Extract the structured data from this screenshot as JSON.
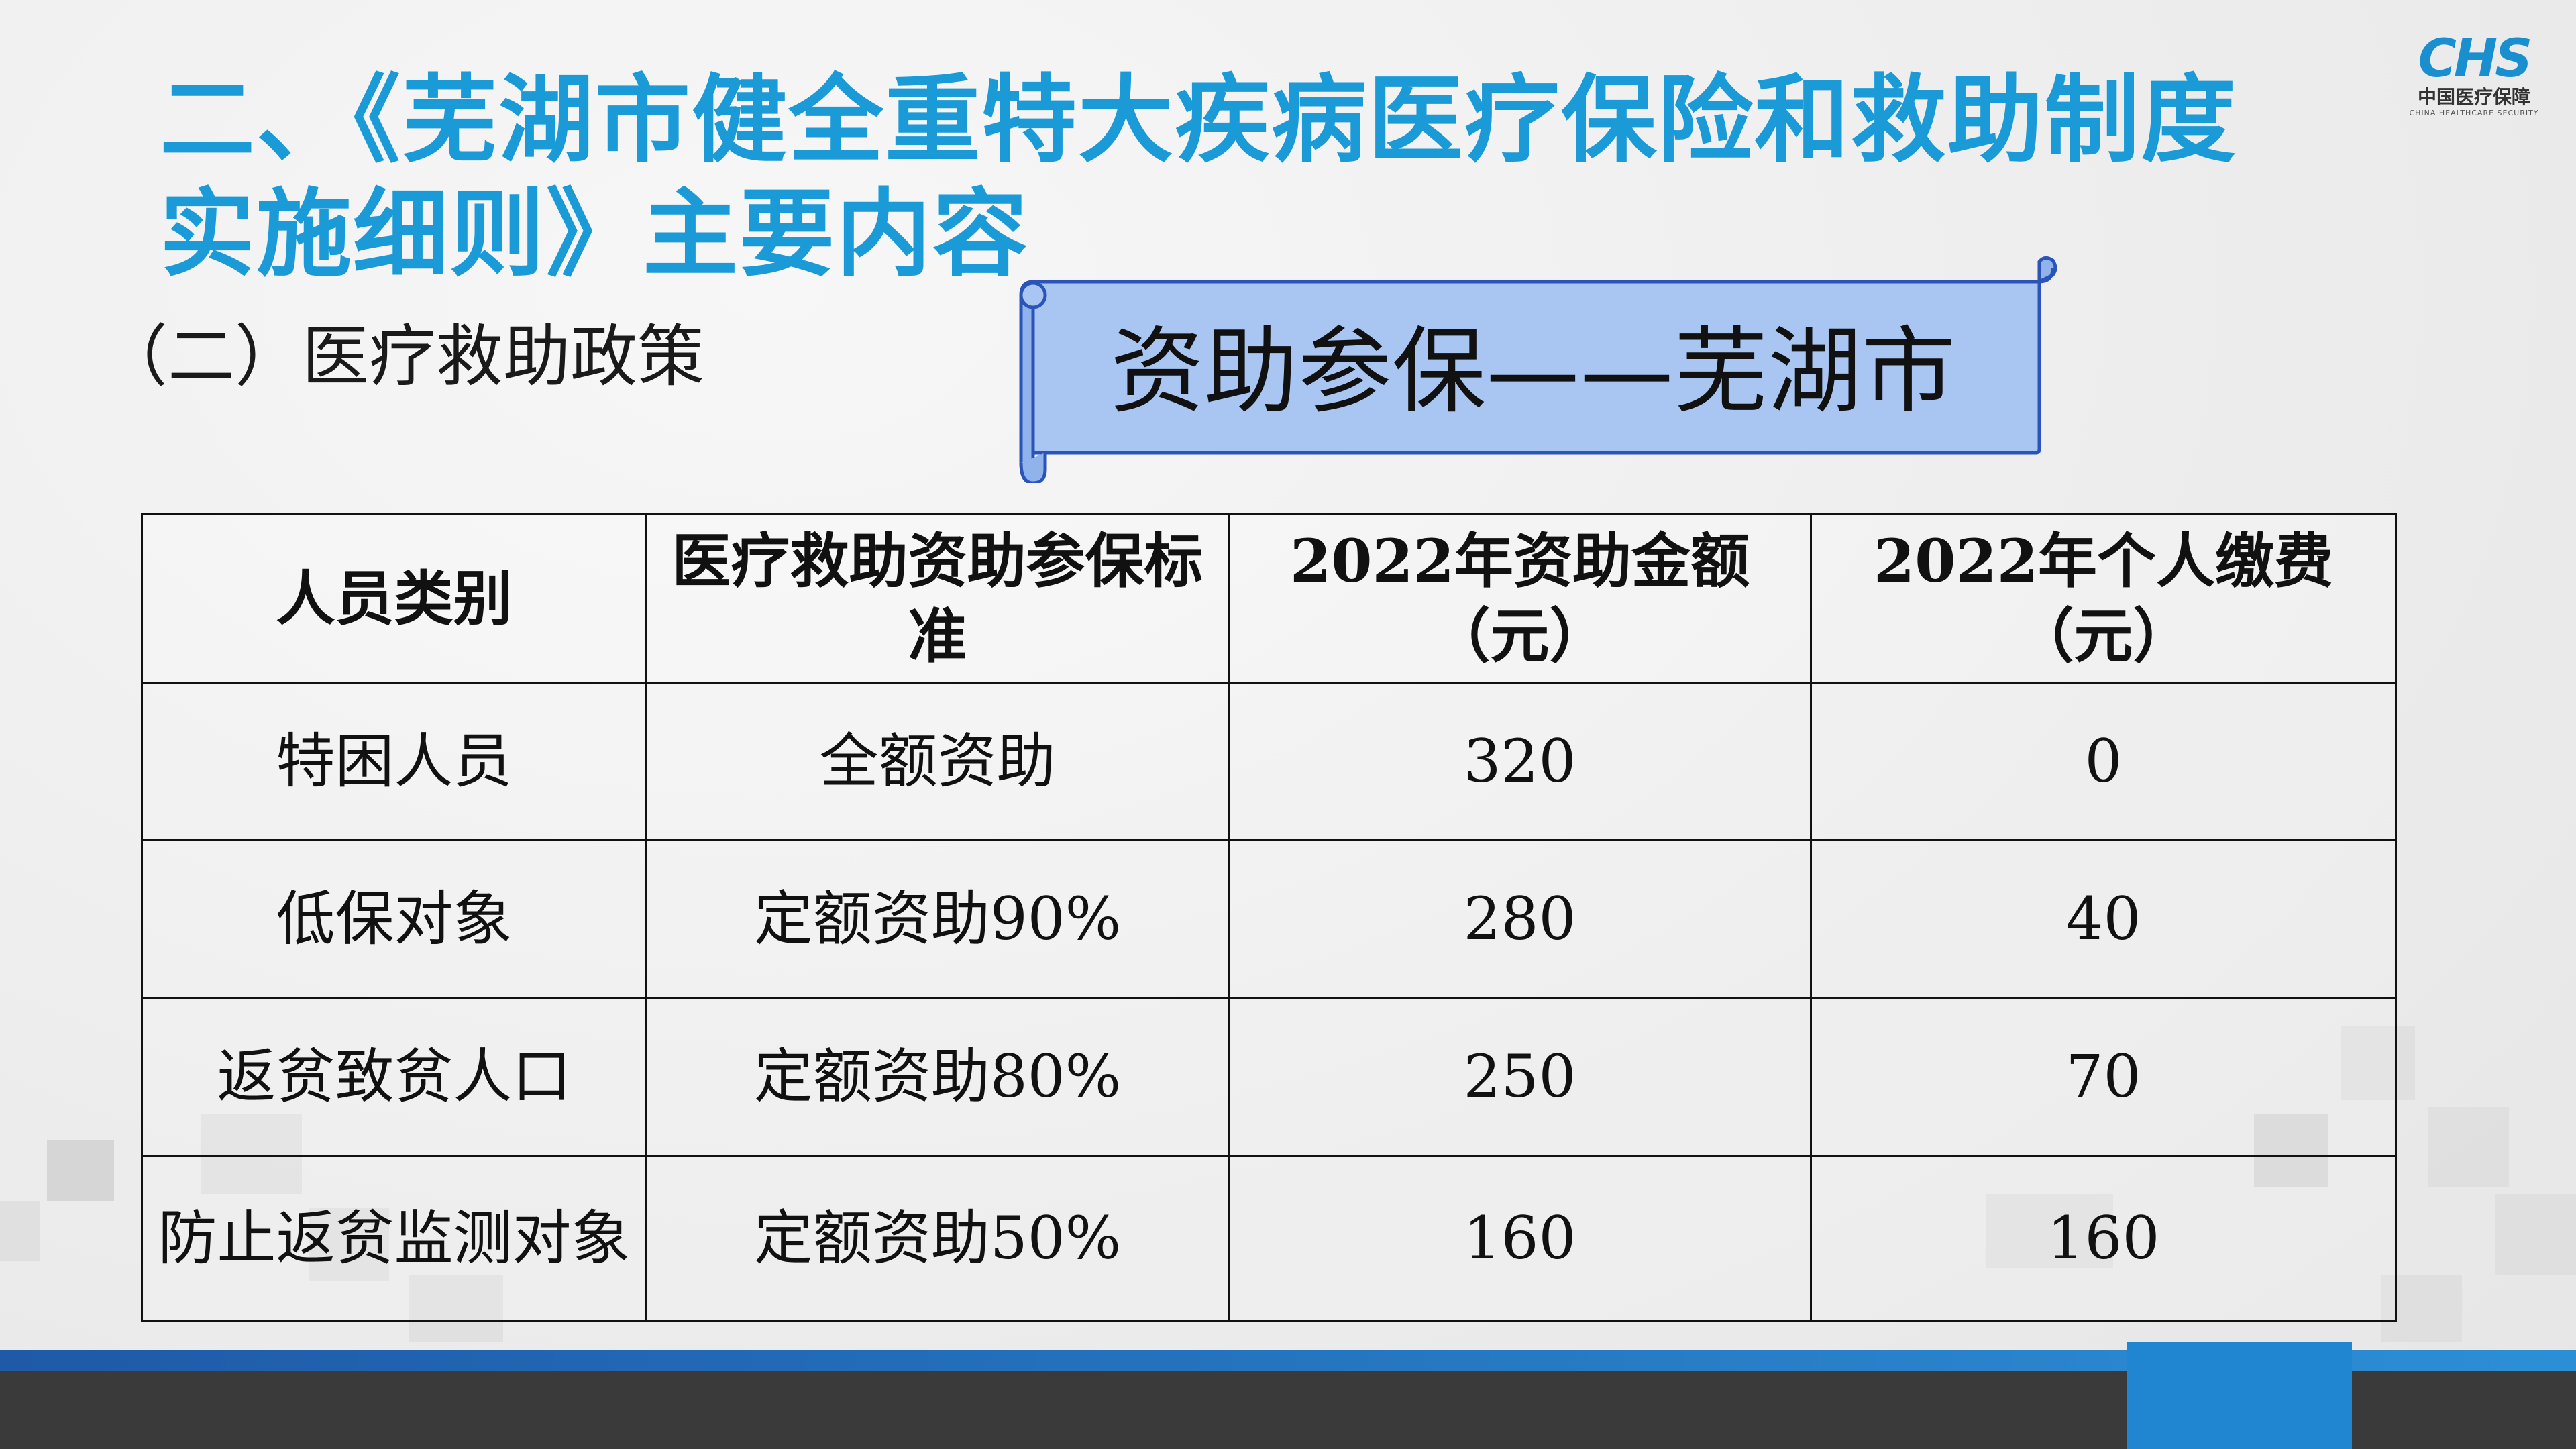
{
  "title": {
    "line1": "二、《芜湖市健全重特大疾病医疗保险和救助制度",
    "line2": "实施细则》主要内容"
  },
  "logo": {
    "mark": "CHS",
    "cn": "中国医疗保障",
    "en": "CHINA HEALTHCARE SECURITY"
  },
  "subtitle": "（二）医疗救助政策",
  "banner": "资助参保——芜湖市",
  "table": {
    "headers": [
      "人员类别",
      "医疗救助资助参保标准",
      "2022年资助金额（元）",
      "2022年个人缴费（元）"
    ],
    "rows": [
      [
        "特困人员",
        "全额资助",
        "320",
        "0"
      ],
      [
        "低保对象",
        "定额资助90%",
        "280",
        "40"
      ],
      [
        "返贫致贫人口",
        "定额资助80%",
        "250",
        "70"
      ],
      [
        "防止返贫监测对象",
        "定额资助50%",
        "160",
        "160"
      ]
    ]
  },
  "colors": {
    "title": "#1a9ad6",
    "banner_fill": "#a9c6f2",
    "banner_stroke": "#2a54b8",
    "footer_blue": "#2086d2",
    "footer_dark": "#3a3a3a"
  }
}
